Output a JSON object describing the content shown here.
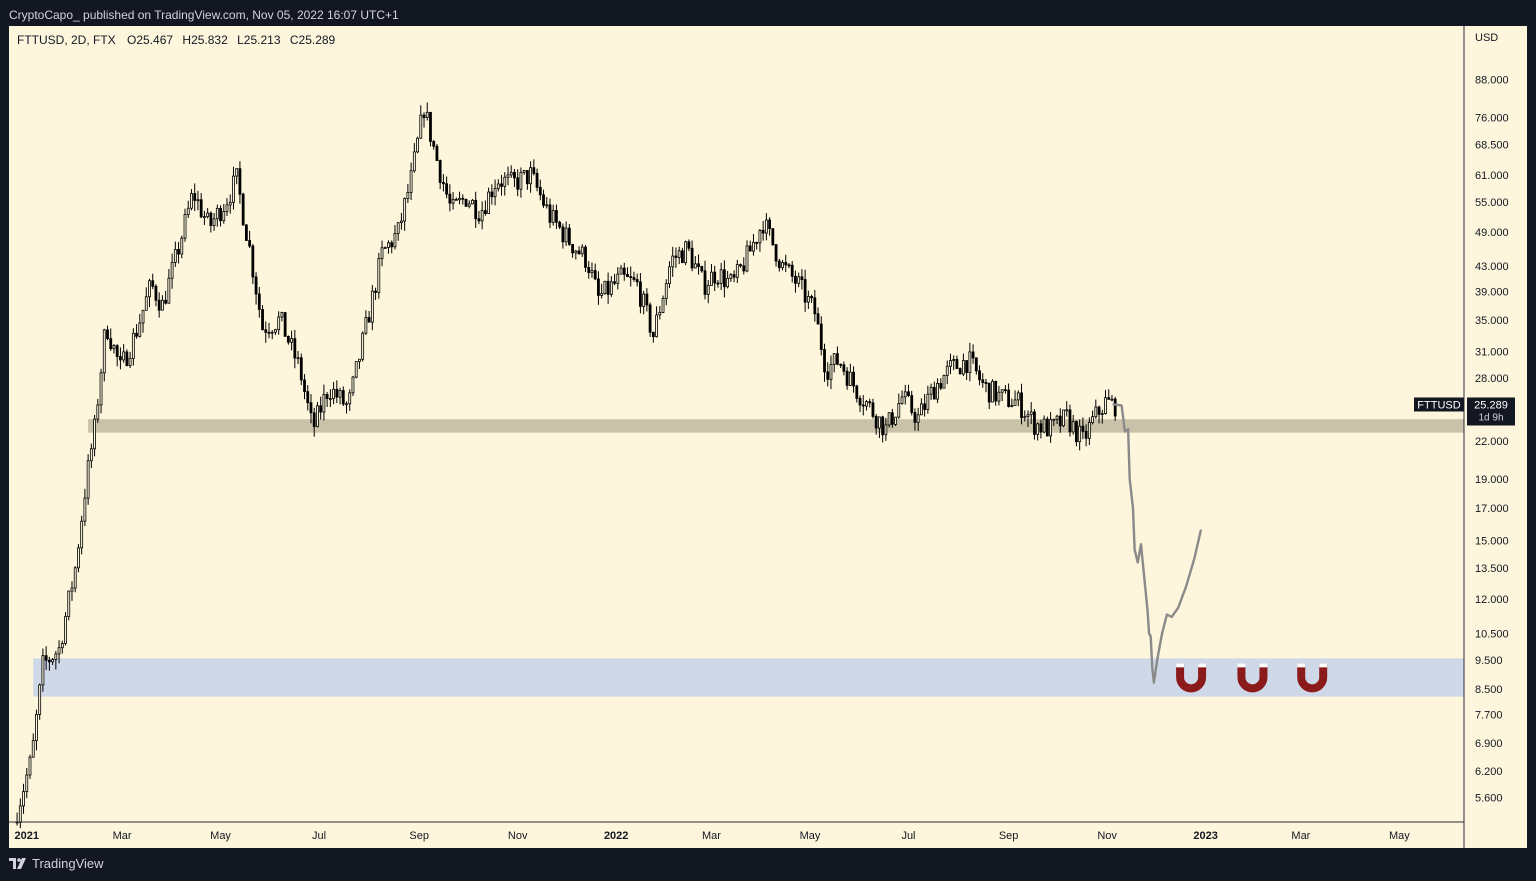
{
  "header": {
    "published_text": "CryptoCapo_ published on TradingView.com, Nov 05, 2022 16:07 UTC+1"
  },
  "footer": {
    "brand": "TradingView",
    "logo_icon": "tradingview-logo-icon"
  },
  "colors": {
    "chart_bg": "#fdf6dc",
    "candle": "#000000",
    "projection_line": "#8a8a8a",
    "support_zone": "#c9c1a8",
    "target_zone": "#cfd8e8",
    "magnet": "#8b1a1a"
  },
  "chart_data": {
    "type": "candlestick",
    "symbol_label": "FTTUSD, 2D, FTX",
    "ohlc_text": {
      "open": "O25.467",
      "high": "H25.832",
      "low": "L25.213",
      "close": "C25.289"
    },
    "y_axis": {
      "unit": "USD",
      "scale": "log",
      "range": [
        5.1,
        100
      ],
      "ticks": [
        "88.000",
        "76.000",
        "68.500",
        "61.000",
        "55.000",
        "49.000",
        "43.000",
        "39.000",
        "35.000",
        "31.000",
        "28.000",
        "22.000",
        "19.000",
        "17.000",
        "15.000",
        "13.500",
        "12.000",
        "10.500",
        "9.500",
        "8.500",
        "7.700",
        "6.900",
        "6.200",
        "5.600"
      ]
    },
    "x_axis": {
      "range": [
        "2020-12-21",
        "2023-06-10"
      ],
      "ticks": [
        {
          "label": "2021",
          "date": "2021-01-01",
          "bold": true
        },
        {
          "label": "Mar",
          "date": "2021-03-01",
          "bold": false
        },
        {
          "label": "May",
          "date": "2021-05-01",
          "bold": false
        },
        {
          "label": "Jul",
          "date": "2021-07-01",
          "bold": false
        },
        {
          "label": "Sep",
          "date": "2021-09-01",
          "bold": false
        },
        {
          "label": "Nov",
          "date": "2021-11-01",
          "bold": false
        },
        {
          "label": "2022",
          "date": "2022-01-01",
          "bold": true
        },
        {
          "label": "Mar",
          "date": "2022-03-01",
          "bold": false
        },
        {
          "label": "May",
          "date": "2022-05-01",
          "bold": false
        },
        {
          "label": "Jul",
          "date": "2022-07-01",
          "bold": false
        },
        {
          "label": "Sep",
          "date": "2022-09-01",
          "bold": false
        },
        {
          "label": "Nov",
          "date": "2022-11-01",
          "bold": false
        },
        {
          "label": "2023",
          "date": "2023-01-01",
          "bold": true
        },
        {
          "label": "Mar",
          "date": "2023-03-01",
          "bold": false
        },
        {
          "label": "May",
          "date": "2023-05-01",
          "bold": false
        }
      ]
    },
    "price_path": [
      [
        "2020-12-25",
        5.1
      ],
      [
        "2021-01-05",
        6.5
      ],
      [
        "2021-01-12",
        9.3
      ],
      [
        "2021-01-22",
        9.9
      ],
      [
        "2021-02-01",
        13.5
      ],
      [
        "2021-02-08",
        19.0
      ],
      [
        "2021-02-13",
        23.0
      ],
      [
        "2021-02-20",
        34.5
      ],
      [
        "2021-03-01",
        29.0
      ],
      [
        "2021-03-10",
        33.0
      ],
      [
        "2021-03-20",
        40.0
      ],
      [
        "2021-03-27",
        37.0
      ],
      [
        "2021-04-05",
        45.0
      ],
      [
        "2021-04-15",
        57.0
      ],
      [
        "2021-04-25",
        50.0
      ],
      [
        "2021-05-05",
        55.0
      ],
      [
        "2021-05-12",
        60.0
      ],
      [
        "2021-05-20",
        46.0
      ],
      [
        "2021-05-28",
        34.0
      ],
      [
        "2021-06-08",
        35.0
      ],
      [
        "2021-06-20",
        29.0
      ],
      [
        "2021-06-28",
        23.0
      ],
      [
        "2021-07-08",
        27.0
      ],
      [
        "2021-07-20",
        25.0
      ],
      [
        "2021-07-30",
        33.0
      ],
      [
        "2021-08-10",
        45.0
      ],
      [
        "2021-08-20",
        49.0
      ],
      [
        "2021-08-28",
        60.0
      ],
      [
        "2021-09-05",
        79.0
      ],
      [
        "2021-09-12",
        66.0
      ],
      [
        "2021-09-22",
        53.0
      ],
      [
        "2021-10-01",
        56.0
      ],
      [
        "2021-10-10",
        53.0
      ],
      [
        "2021-10-20",
        60.0
      ],
      [
        "2021-10-30",
        59.0
      ],
      [
        "2021-11-10",
        61.0
      ],
      [
        "2021-11-22",
        52.0
      ],
      [
        "2021-12-05",
        47.0
      ],
      [
        "2021-12-15",
        44.0
      ],
      [
        "2021-12-22",
        38.0
      ],
      [
        "2022-01-05",
        41.0
      ],
      [
        "2022-01-15",
        40.0
      ],
      [
        "2022-01-25",
        33.0
      ],
      [
        "2022-02-05",
        44.0
      ],
      [
        "2022-02-15",
        46.0
      ],
      [
        "2022-02-25",
        40.0
      ],
      [
        "2022-03-05",
        42.0
      ],
      [
        "2022-03-15",
        40.0
      ],
      [
        "2022-03-25",
        45.0
      ],
      [
        "2022-04-03",
        51.0
      ],
      [
        "2022-04-15",
        43.0
      ],
      [
        "2022-04-25",
        40.0
      ],
      [
        "2022-05-05",
        36.0
      ],
      [
        "2022-05-12",
        29.0
      ],
      [
        "2022-05-20",
        30.0
      ],
      [
        "2022-05-30",
        27.0
      ],
      [
        "2022-06-08",
        25.0
      ],
      [
        "2022-06-18",
        23.0
      ],
      [
        "2022-06-28",
        26.0
      ],
      [
        "2022-07-08",
        24.0
      ],
      [
        "2022-07-18",
        27.0
      ],
      [
        "2022-07-28",
        29.0
      ],
      [
        "2022-08-08",
        30.0
      ],
      [
        "2022-08-18",
        27.0
      ],
      [
        "2022-08-28",
        26.0
      ],
      [
        "2022-09-08",
        25.5
      ],
      [
        "2022-09-18",
        23.5
      ],
      [
        "2022-09-28",
        23.0
      ],
      [
        "2022-10-08",
        24.0
      ],
      [
        "2022-10-18",
        22.0
      ],
      [
        "2022-10-25",
        24.0
      ],
      [
        "2022-11-01",
        25.5
      ],
      [
        "2022-11-05",
        25.289
      ]
    ],
    "projection": [
      [
        "2022-11-05",
        25.3
      ],
      [
        "2022-11-10",
        25.2
      ],
      [
        "2022-11-12",
        22.8
      ],
      [
        "2022-11-14",
        23.0
      ],
      [
        "2022-11-15",
        19.0
      ],
      [
        "2022-11-17",
        17.0
      ],
      [
        "2022-11-18",
        14.5
      ],
      [
        "2022-11-20",
        13.8
      ],
      [
        "2022-11-22",
        14.8
      ],
      [
        "2022-11-24",
        13.0
      ],
      [
        "2022-11-26",
        11.5
      ],
      [
        "2022-11-27",
        10.5
      ],
      [
        "2022-11-28",
        10.4
      ],
      [
        "2022-11-29",
        9.2
      ],
      [
        "2022-11-30",
        8.7
      ],
      [
        "2022-12-02",
        9.5
      ],
      [
        "2022-12-05",
        10.5
      ],
      [
        "2022-12-08",
        11.3
      ],
      [
        "2022-12-11",
        11.2
      ],
      [
        "2022-12-15",
        11.6
      ],
      [
        "2022-12-20",
        12.6
      ],
      [
        "2022-12-25",
        14.0
      ],
      [
        "2022-12-29",
        15.6
      ]
    ],
    "zones": [
      {
        "name": "support",
        "from": "2021-02-08",
        "low": 22.7,
        "high": 23.9
      },
      {
        "name": "target",
        "from": "2021-01-05",
        "low": 8.25,
        "high": 9.55
      }
    ],
    "magnets": [
      {
        "date": "2022-12-23",
        "price": 8.95
      },
      {
        "date": "2023-01-30",
        "price": 8.95
      },
      {
        "date": "2023-03-08",
        "price": 8.95
      }
    ],
    "price_tag": {
      "symbol": "FTTUSD",
      "value": "25.289",
      "countdown": "1d 9h",
      "price": 25.289
    }
  }
}
